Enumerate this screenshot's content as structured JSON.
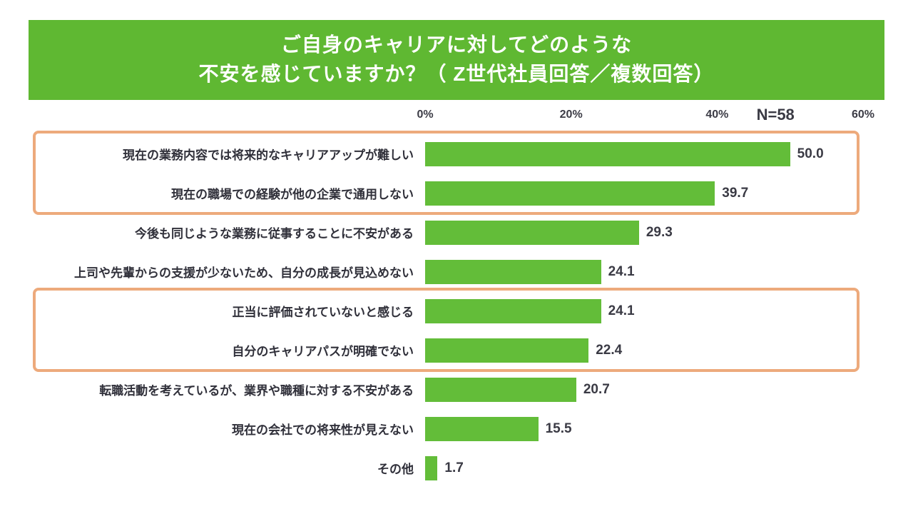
{
  "title": {
    "line1": "ご自身のキャリアに対してどのような",
    "line2": "不安を感じていますか？（ Z世代社員回答／複数回答）"
  },
  "sample_label": "N=58",
  "banner_color": "#5fb832",
  "chart_data": {
    "type": "bar",
    "orientation": "horizontal",
    "title": "ご自身のキャリアに対してどのような不安を感じていますか？（ Z世代社員回答／複数回答）",
    "categories": [
      "現在の業務内容では将来的なキャリアアップが難しい",
      "現在の職場での経験が他の企業で通用しない",
      "今後も同じような業務に従事することに不安がある",
      "上司や先輩からの支援が少ないため、自分の成長が見込めない",
      "正当に評価されていないと感じる",
      "自分のキャリアパスが明確でない",
      "転職活動を考えているが、業界や職種に対する不安がある",
      "現在の会社での将来性が見えない",
      "その他"
    ],
    "values": [
      50.0,
      39.7,
      29.3,
      24.1,
      24.1,
      22.4,
      20.7,
      15.5,
      1.7
    ],
    "value_labels": [
      "50.0",
      "39.7",
      "29.3",
      "24.1",
      "24.1",
      "22.4",
      "20.7",
      "15.5",
      "1.7"
    ],
    "x_ticks": [
      "0%",
      "20%",
      "40%",
      "60%"
    ],
    "xlim": [
      0,
      60
    ],
    "xlabel": "",
    "ylabel": "",
    "grid": false,
    "legend": false,
    "bar_color": "#63bd39",
    "highlight_groups": [
      [
        0,
        1
      ],
      [
        4,
        5
      ]
    ],
    "highlight_color": "#edaa7c",
    "sample_size": 58
  }
}
